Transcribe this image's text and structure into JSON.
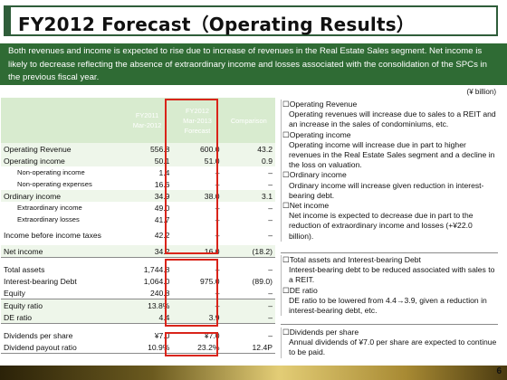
{
  "title": "FY2012 Forecast（Operating Results）",
  "summary": "Both revenues and income is expected to rise due to increase of revenues in the Real Estate Sales segment. Net income is likely to decrease reflecting the absence of extraordinary income and losses associated with the consolidation of the SPCs in the previous fiscal year.",
  "unit": "(¥ billion)",
  "header": {
    "col1_line1": "FY2011",
    "col1_line2": "Mar-2012",
    "col2_line1": "FY2012",
    "col2_line2": "Mar-2013",
    "col2_line3": "Forecast",
    "col3": "Comparison"
  },
  "rows": [
    {
      "label": "Operating Revenue",
      "v1": "556.8",
      "v2": "600.0",
      "v3": "43.2"
    },
    {
      "label": "Operating income",
      "v1": "50.1",
      "v2": "51.0",
      "v3": "0.9"
    },
    {
      "label": "Non-operating income",
      "v1": "1.4",
      "v2": "–",
      "v3": "–"
    },
    {
      "label": "Non-operating expenses",
      "v1": "16.6",
      "v2": "–",
      "v3": "–"
    },
    {
      "label": "Ordinary income",
      "v1": "34.9",
      "v2": "38.0",
      "v3": "3.1"
    },
    {
      "label": "Extraordinary income",
      "v1": "49.0",
      "v2": "–",
      "v3": "–"
    },
    {
      "label": "Extraordinary losses",
      "v1": "41.7",
      "v2": "–",
      "v3": "–"
    },
    {
      "label": "Income before income taxes",
      "v1": "42.2",
      "v2": "–",
      "v3": "–"
    },
    {
      "label": "Net income",
      "v1": "34.2",
      "v2": "16.0",
      "v3": "(18.2)"
    },
    {
      "label": "Total assets",
      "v1": "1,744.8",
      "v2": "–",
      "v3": "–"
    },
    {
      "label": "Interest-bearing Debt",
      "v1": "1,064.0",
      "v2": "975.0",
      "v3": "(89.0)"
    },
    {
      "label": "Equity",
      "v1": "240.8",
      "v2": "–",
      "v3": "–"
    },
    {
      "label": "Equity ratio",
      "v1": "13.8%",
      "v2": "–",
      "v3": "–"
    },
    {
      "label": "DE ratio",
      "v1": "4.4",
      "v2": "3.9",
      "v3": "–"
    },
    {
      "label": "Dividends per share",
      "v1": "¥7.0",
      "v2": "¥7.0",
      "v3": "–"
    },
    {
      "label": "Dividend payout ratio",
      "v1": "10.9%",
      "v2": "23.2%",
      "v3": "12.4P"
    }
  ],
  "notes": {
    "op_rev_head": "☐Operating Revenue",
    "op_rev_body": "Operating revenues will increase due to sales to a REIT and an increase in the sales of condominiums, etc.",
    "op_inc_head": "☐Operating income",
    "op_inc_body": "Operating income will increase due in part to higher revenues in the Real Estate Sales segment and a decline in the loss on valuation.",
    "ord_inc_head": "☐Ordinary income",
    "ord_inc_body": "Ordinary income will increase given reduction in interest-bearing debt.",
    "net_inc_head": "☐Net income",
    "net_inc_body": "Net income is expected to decrease due in part to the reduction of extraordinary income and losses (+¥22.0 billion).",
    "assets_head": "☐Total assets and Interest-bearing Debt",
    "assets_body": "Interest-bearing debt to be reduced associated with sales to a REIT.",
    "de_head": "☐DE ratio",
    "de_body": "DE ratio to be lowered from 4.4→3.9, given a reduction in interest-bearing debt, etc.",
    "div_head": "☐Dividends per share",
    "div_body": "Annual dividends of ¥7.0 per share are expected to continue to be paid."
  },
  "page_number": "6",
  "colors": {
    "brand_green": "#2f6b34",
    "highlight_red": "#d9241a",
    "header_fill": "#d8ebcf"
  }
}
